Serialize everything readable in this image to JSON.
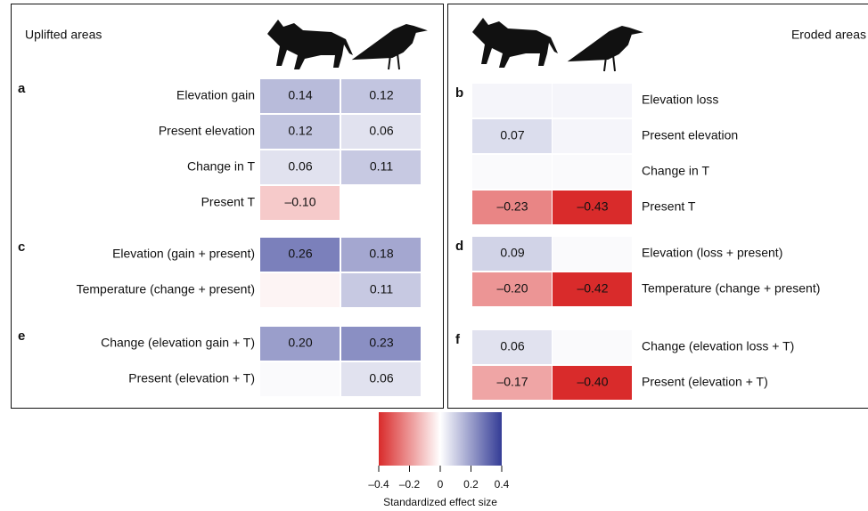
{
  "chart_data": {
    "type": "heatmap",
    "panels": [
      {
        "title": "Uplifted areas",
        "groups": [
          {
            "letter": "a",
            "rows": [
              {
                "label": "Elevation gain",
                "values": [
                  0.14,
                  0.12
                ],
                "value_labels": [
                  "0.14",
                  "0.12"
                ]
              },
              {
                "label": "Present elevation",
                "values": [
                  0.12,
                  0.06
                ],
                "value_labels": [
                  "0.12",
                  "0.06"
                ]
              },
              {
                "label": "Change in T",
                "values": [
                  0.06,
                  0.11
                ],
                "value_labels": [
                  "0.06",
                  "0.11"
                ]
              },
              {
                "label": "Present T",
                "values": [
                  -0.1,
                  null
                ],
                "value_labels": [
                  "–0.10",
                  null
                ]
              }
            ]
          },
          {
            "letter": "c",
            "rows": [
              {
                "label": "Elevation (gain + present)",
                "values": [
                  0.26,
                  0.18
                ],
                "value_labels": [
                  "0.26",
                  "0.18"
                ]
              },
              {
                "label": "Temperature (change + present)",
                "values": [
                  -0.02,
                  0.11
                ],
                "value_labels": [
                  null,
                  "0.11"
                ]
              }
            ]
          },
          {
            "letter": "e",
            "rows": [
              {
                "label": "Change (elevation gain + T)",
                "values": [
                  0.2,
                  0.23
                ],
                "value_labels": [
                  "0.20",
                  "0.23"
                ]
              },
              {
                "label": "Present (elevation + T)",
                "values": [
                  0.01,
                  0.06
                ],
                "value_labels": [
                  null,
                  "0.06"
                ]
              }
            ]
          }
        ]
      },
      {
        "title": "Eroded areas",
        "groups": [
          {
            "letter": "b",
            "rows": [
              {
                "label": "Elevation loss",
                "values": [
                  0.02,
                  0.02
                ],
                "value_labels": [
                  null,
                  null
                ]
              },
              {
                "label": "Present elevation",
                "values": [
                  0.07,
                  0.02
                ],
                "value_labels": [
                  "0.07",
                  null
                ]
              },
              {
                "label": "Change in T",
                "values": [
                  0.01,
                  0.01
                ],
                "value_labels": [
                  null,
                  null
                ]
              },
              {
                "label": "Present T",
                "values": [
                  -0.23,
                  -0.43
                ],
                "value_labels": [
                  "–0.23",
                  "–0.43"
                ]
              }
            ]
          },
          {
            "letter": "d",
            "rows": [
              {
                "label": "Elevation (loss + present)",
                "values": [
                  0.09,
                  0.01
                ],
                "value_labels": [
                  "0.09",
                  null
                ]
              },
              {
                "label": "Temperature (change + present)",
                "values": [
                  -0.2,
                  -0.42
                ],
                "value_labels": [
                  "–0.20",
                  "–0.42"
                ]
              }
            ]
          },
          {
            "letter": "f",
            "rows": [
              {
                "label": "Change (elevation loss + T)",
                "values": [
                  0.06,
                  0.01
                ],
                "value_labels": [
                  "0.06",
                  null
                ]
              },
              {
                "label": "Present (elevation + T)",
                "values": [
                  -0.17,
                  -0.4
                ],
                "value_labels": [
                  "–0.17",
                  "–0.40"
                ]
              }
            ]
          }
        ]
      }
    ],
    "colorbar": {
      "label": "Standardized effect size",
      "lim": [
        -0.4,
        0.4
      ],
      "ticks": [
        {
          "value": -0.4,
          "label": "–0.4"
        },
        {
          "value": -0.2,
          "label": "–0.2"
        },
        0,
        0.2,
        0.4
      ]
    }
  }
}
